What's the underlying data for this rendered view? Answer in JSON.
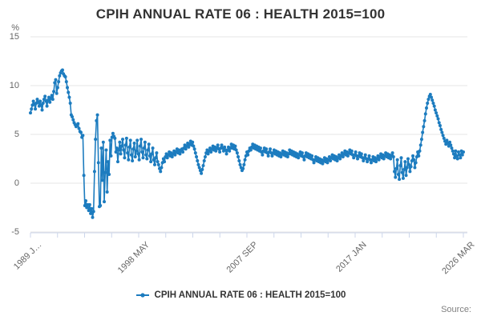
{
  "title": "CPIH ANNUAL RATE 06 : HEALTH 2015=100",
  "legend": {
    "label": "CPIH ANNUAL RATE 06 : HEALTH 2015=100"
  },
  "source_label": "Source:",
  "y_axis": {
    "unit_label": "%",
    "ticks": [
      15,
      10,
      5,
      0,
      -5
    ],
    "min": -5,
    "max": 15
  },
  "x_axis": {
    "labels": [
      "1989 J…",
      "1998 MAY",
      "2007 SEP",
      "2017 JAN",
      "2026 MAR"
    ],
    "minor_ticks_between_labels": 3,
    "label_rotation_deg": -45
  },
  "colors": {
    "line": "#1d7cbf",
    "grid": "#e6e6e6",
    "axis": "#ccd6eb",
    "title_text": "#333333",
    "axis_text": "#666666",
    "source_text": "#808080"
  },
  "chart_data": {
    "type": "line",
    "title": "CPIH ANNUAL RATE 06 : HEALTH 2015=100",
    "ylabel": "%",
    "ylim": [
      -5,
      15
    ],
    "grid": true,
    "legend_position": "bottom",
    "x_start": "1989 JAN",
    "x_end": "2026 MAR",
    "frequency": "monthly",
    "x_tick_labels": [
      "1989 J…",
      "1998 MAY",
      "2007 SEP",
      "2017 JAN",
      "2026 MAR"
    ],
    "series": [
      {
        "name": "CPIH ANNUAL RATE 06 : HEALTH 2015=100",
        "marker": "circle",
        "values": [
          7.2,
          7.6,
          8.0,
          8.4,
          8.1,
          7.6,
          8.2,
          8.6,
          8.3,
          7.9,
          8.4,
          8.0,
          7.5,
          8.2,
          8.6,
          8.9,
          8.4,
          7.9,
          8.5,
          8.8,
          8.3,
          8.7,
          9.0,
          8.6,
          9.4,
          10.3,
          10.6,
          9.2,
          9.8,
          10.4,
          11.0,
          11.3,
          11.5,
          11.6,
          11.2,
          11.0,
          10.9,
          10.4,
          9.8,
          9.3,
          8.8,
          8.2,
          7.0,
          6.8,
          6.5,
          6.2,
          6.0,
          5.8,
          5.9,
          6.1,
          5.6,
          5.3,
          5.2,
          4.7,
          4.9,
          0.8,
          -2.3,
          -1.8,
          -2.5,
          -2.2,
          -2.8,
          -2.2,
          -3.1,
          -2.6,
          -3.5,
          -2.9,
          1.2,
          4.5,
          6.4,
          7.0,
          2.1,
          -2.4,
          -2.3,
          3.6,
          0.3,
          4.2,
          -1.9,
          1.1,
          3.4,
          -0.9,
          2.2,
          0.9,
          4.4,
          2.8,
          4.7,
          5.1,
          4.8,
          4.6,
          3.2,
          3.6,
          2.2,
          3.4,
          4.2,
          3.0,
          3.8,
          4.5,
          3.4,
          2.6,
          3.9,
          4.6,
          3.1,
          2.4,
          3.7,
          4.4,
          2.9,
          2.3,
          3.5,
          4.1,
          2.7,
          3.3,
          4.4,
          3.0,
          2.4,
          3.8,
          4.5,
          3.2,
          2.6,
          3.6,
          4.2,
          2.9,
          2.5,
          3.4,
          4.0,
          2.8,
          2.2,
          3.0,
          3.6,
          2.4,
          1.9,
          2.6,
          3.1,
          2.2,
          1.9,
          1.5,
          1.2,
          1.6,
          2.1,
          2.5,
          2.2,
          2.7,
          3.0,
          2.6,
          2.9,
          3.2,
          2.8,
          3.1,
          2.7,
          3.0,
          3.3,
          2.9,
          3.2,
          3.5,
          3.1,
          3.4,
          3.0,
          3.3,
          3.5,
          3.2,
          3.6,
          3.9,
          3.5,
          3.8,
          4.1,
          3.7,
          4.0,
          4.3,
          3.9,
          4.2,
          3.8,
          3.5,
          3.1,
          2.7,
          2.3,
          1.9,
          1.6,
          1.3,
          1.0,
          1.4,
          1.8,
          2.3,
          2.7,
          3.1,
          3.4,
          3.0,
          3.3,
          3.6,
          3.2,
          3.5,
          3.8,
          3.4,
          3.7,
          3.3,
          3.6,
          3.9,
          3.5,
          3.2,
          3.6,
          3.9,
          3.6,
          3.3,
          3.7,
          3.4,
          3.0,
          3.4,
          3.7,
          3.3,
          3.6,
          4.0,
          3.6,
          3.9,
          3.5,
          3.8,
          3.4,
          3.1,
          2.7,
          2.3,
          1.9,
          1.6,
          1.3,
          1.5,
          1.9,
          2.4,
          2.8,
          3.2,
          2.9,
          3.3,
          3.6,
          3.4,
          3.7,
          4.0,
          3.6,
          3.9,
          3.5,
          3.8,
          3.4,
          3.7,
          3.3,
          3.6,
          3.2,
          2.9,
          3.3,
          3.6,
          3.2,
          3.5,
          3.1,
          2.8,
          3.2,
          3.5,
          3.1,
          2.8,
          3.1,
          3.4,
          3.0,
          3.3,
          2.9,
          3.2,
          2.8,
          3.1,
          2.7,
          3.0,
          3.3,
          2.9,
          3.2,
          2.8,
          3.1,
          2.7,
          3.0,
          3.4,
          3.0,
          3.3,
          2.9,
          3.2,
          2.8,
          3.1,
          2.7,
          3.0,
          2.6,
          2.9,
          3.2,
          2.8,
          3.1,
          2.7,
          2.4,
          2.8,
          3.1,
          2.7,
          3.0,
          2.6,
          2.9,
          2.5,
          2.8,
          2.4,
          2.1,
          2.4,
          2.7,
          2.3,
          2.6,
          2.2,
          2.5,
          2.1,
          2.4,
          2.0,
          2.3,
          2.6,
          2.2,
          2.5,
          2.1,
          2.4,
          2.7,
          2.3,
          2.6,
          2.9,
          2.5,
          2.8,
          2.4,
          2.7,
          2.3,
          2.6,
          2.9,
          2.5,
          2.8,
          3.1,
          2.7,
          3.0,
          3.3,
          2.9,
          3.2,
          2.8,
          3.1,
          3.4,
          3.0,
          3.3,
          2.9,
          2.6,
          2.9,
          3.2,
          2.8,
          2.5,
          2.8,
          3.1,
          2.7,
          3.0,
          2.6,
          2.3,
          2.6,
          2.9,
          2.5,
          2.2,
          2.5,
          2.8,
          2.4,
          2.1,
          2.4,
          2.7,
          2.3,
          2.6,
          2.2,
          2.5,
          2.8,
          2.4,
          2.7,
          3.0,
          2.6,
          2.9,
          2.5,
          2.8,
          3.1,
          2.7,
          3.0,
          2.6,
          2.9,
          2.5,
          2.8,
          3.1,
          2.7,
          1.2,
          0.6,
          1.5,
          2.4,
          0.9,
          0.4,
          1.8,
          2.6,
          1.1,
          0.5,
          1.4,
          2.2,
          0.8,
          1.6,
          2.5,
          1.9,
          1.2,
          1.7,
          2.3,
          2.8,
          2.4,
          1.6,
          2.1,
          2.7,
          3.2,
          2.8,
          3.3,
          3.9,
          4.5,
          5.2,
          5.8,
          6.4,
          7.1,
          7.7,
          8.2,
          8.6,
          8.9,
          9.1,
          8.8,
          8.5,
          8.2,
          7.9,
          7.5,
          7.2,
          6.9,
          6.6,
          6.2,
          5.9,
          5.5,
          5.2,
          4.9,
          4.6,
          4.3,
          4.0,
          4.4,
          4.1,
          3.8,
          4.2,
          3.9,
          3.6,
          3.3,
          3.0,
          2.6,
          3.3,
          2.8,
          2.5,
          3.2,
          2.9,
          2.6,
          3.3,
          2.9,
          3.2
        ]
      }
    ]
  }
}
